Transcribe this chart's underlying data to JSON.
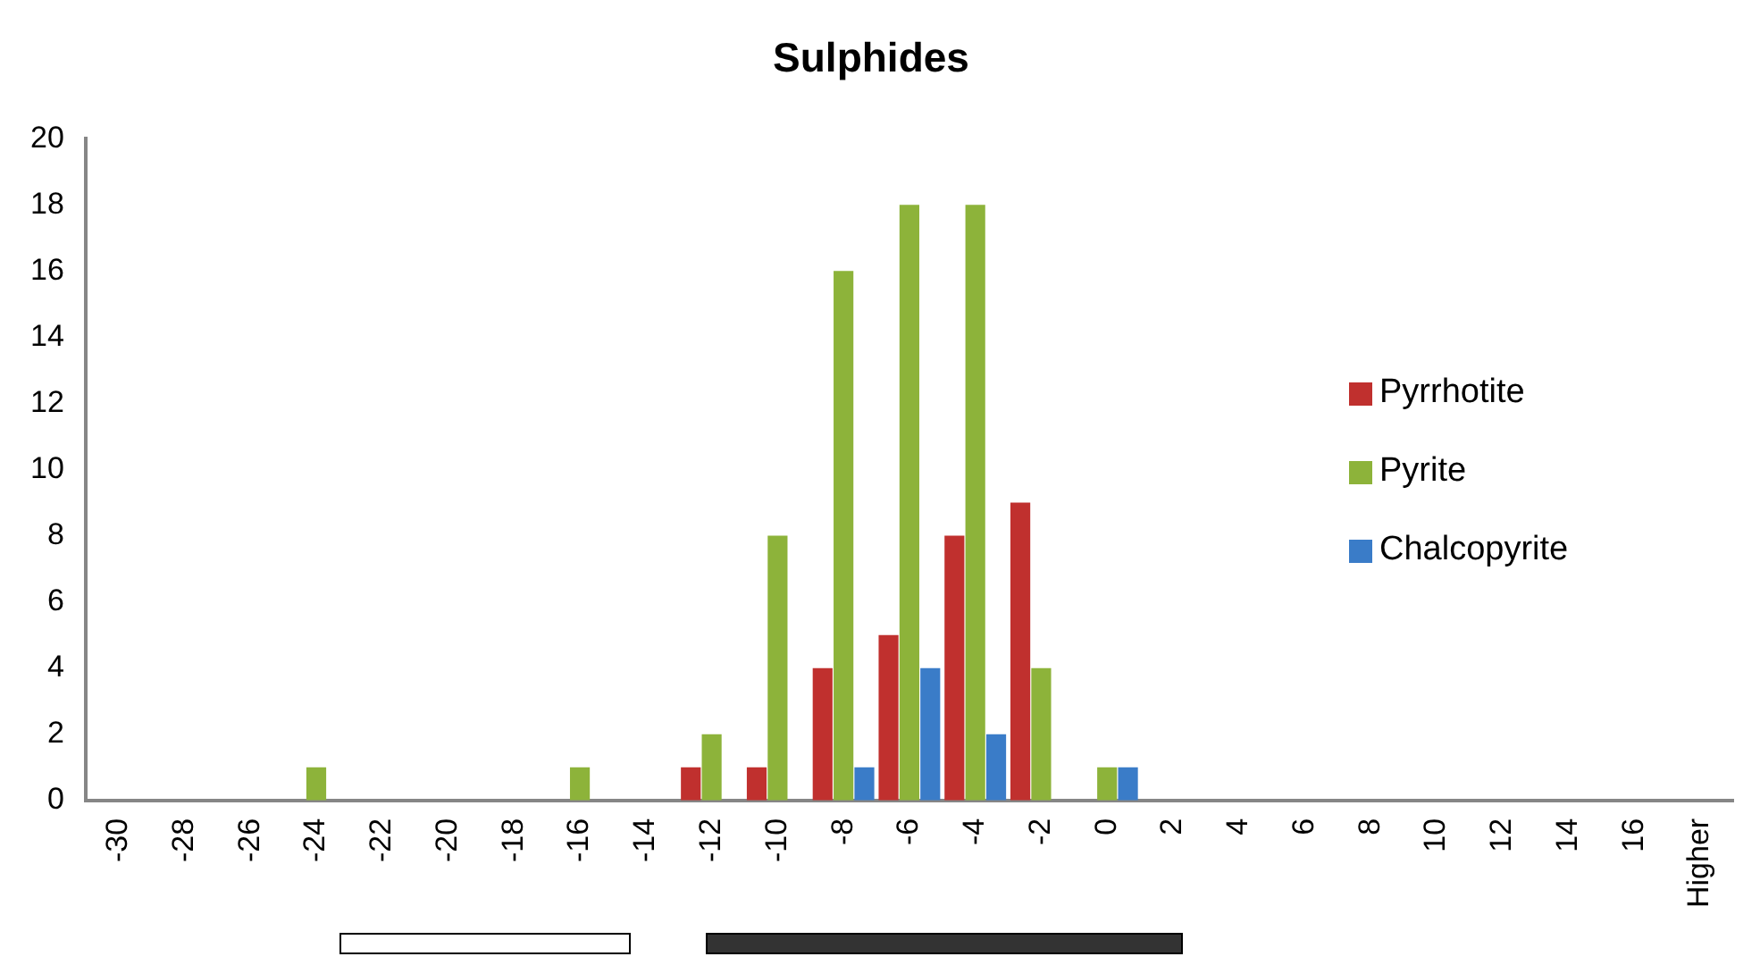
{
  "chart_data": {
    "type": "bar",
    "title": "Sulphides",
    "categories": [
      "-30",
      "-28",
      "-26",
      "-24",
      "-22",
      "-20",
      "-18",
      "-16",
      "-14",
      "-12",
      "-10",
      "-8",
      "-6",
      "-4",
      "-2",
      "0",
      "2",
      "4",
      "6",
      "8",
      "10",
      "12",
      "14",
      "16",
      "Higher"
    ],
    "series": [
      {
        "name": "Pyrrhotite",
        "color": "#c0302e",
        "values": [
          0,
          0,
          0,
          0,
          0,
          0,
          0,
          0,
          0,
          1,
          1,
          4,
          5,
          8,
          9,
          0,
          0,
          0,
          0,
          0,
          0,
          0,
          0,
          0,
          0
        ]
      },
      {
        "name": "Pyrite",
        "color": "#8db33a",
        "values": [
          0,
          0,
          0,
          1,
          0,
          0,
          0,
          1,
          0,
          2,
          8,
          16,
          18,
          18,
          4,
          1,
          0,
          0,
          0,
          0,
          0,
          0,
          0,
          0,
          0
        ]
      },
      {
        "name": "Chalcopyrite",
        "color": "#3a7cc8",
        "values": [
          0,
          0,
          0,
          0,
          0,
          0,
          0,
          0,
          0,
          0,
          0,
          1,
          4,
          2,
          0,
          1,
          0,
          0,
          0,
          0,
          0,
          0,
          0,
          0,
          0
        ]
      }
    ],
    "ylim": [
      0,
      20
    ],
    "yticks": [
      0,
      2,
      4,
      6,
      8,
      10,
      12,
      14,
      16,
      18,
      20
    ],
    "grid": false,
    "legend": "right"
  }
}
